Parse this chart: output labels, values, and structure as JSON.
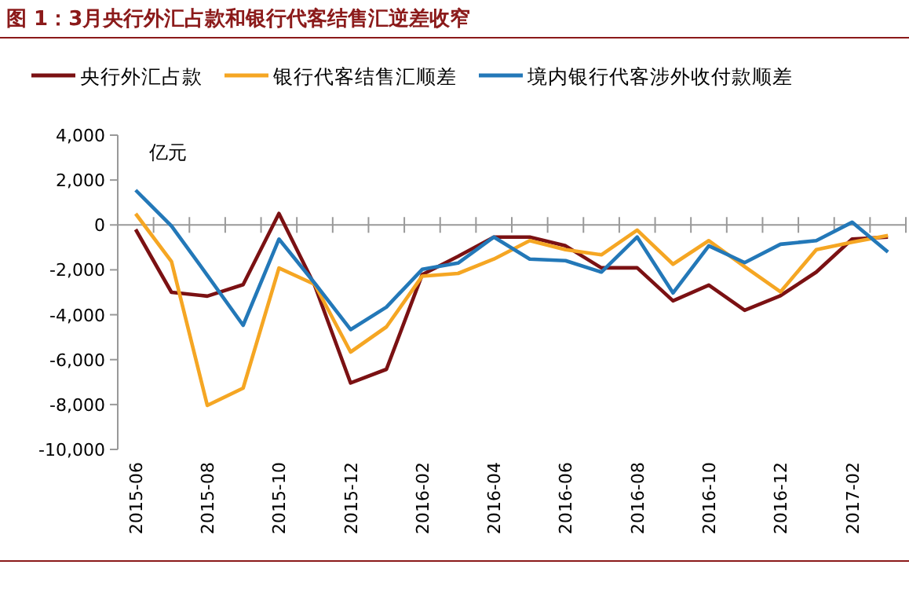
{
  "chart_data": {
    "type": "line",
    "title": "图 1：3月央行外汇占款和银行代客结售汇逆差收窄",
    "ylabel": "亿元",
    "categories": [
      "2015-06",
      null,
      "2015-08",
      null,
      "2015-10",
      null,
      "2015-12",
      null,
      "2016-02",
      null,
      "2016-04",
      null,
      "2016-06",
      null,
      "2016-08",
      null,
      "2016-10",
      null,
      "2016-12",
      null,
      "2017-02",
      null
    ],
    "series": [
      {
        "name": "央行外汇占款",
        "color": "#7b1113",
        "values": [
          -200,
          -3000,
          -3170,
          -2660,
          510,
          -2700,
          -7040,
          -6430,
          -2210,
          -1400,
          -540,
          -540,
          -930,
          -1910,
          -1910,
          -3380,
          -2680,
          -3800,
          -3150,
          -2100,
          -630,
          -540
        ]
      },
      {
        "name": "银行代客结售汇顺差",
        "color": "#f5a623",
        "values": [
          500,
          -1630,
          -8040,
          -7270,
          -1920,
          -2650,
          -5660,
          -4540,
          -2280,
          -2160,
          -1520,
          -700,
          -1100,
          -1330,
          -230,
          -1750,
          -700,
          -1860,
          -2980,
          -1100,
          -770,
          -470
        ]
      },
      {
        "name": "境内银行代客涉外收付款顺差",
        "color": "#2378b8",
        "values": [
          1550,
          -50,
          -2240,
          -4470,
          -630,
          -2600,
          -4660,
          -3660,
          -1980,
          -1700,
          -540,
          -1520,
          -1590,
          -2100,
          -540,
          -3030,
          -930,
          -1680,
          -860,
          -700,
          120,
          -1210
        ]
      }
    ],
    "ylim": [
      -10000,
      4000
    ],
    "yticks": [
      {
        "value": -10000,
        "label": "-10,000"
      },
      {
        "value": -8000,
        "label": "-8,000"
      },
      {
        "value": -6000,
        "label": "-6,000"
      },
      {
        "value": -4000,
        "label": "-4,000"
      },
      {
        "value": -2000,
        "label": "-2,000"
      },
      0,
      {
        "value": 2000,
        "label": "2,000"
      },
      {
        "value": 4000,
        "label": "4,000"
      }
    ],
    "legend": "top",
    "marker": "none",
    "line_style": "solid"
  }
}
